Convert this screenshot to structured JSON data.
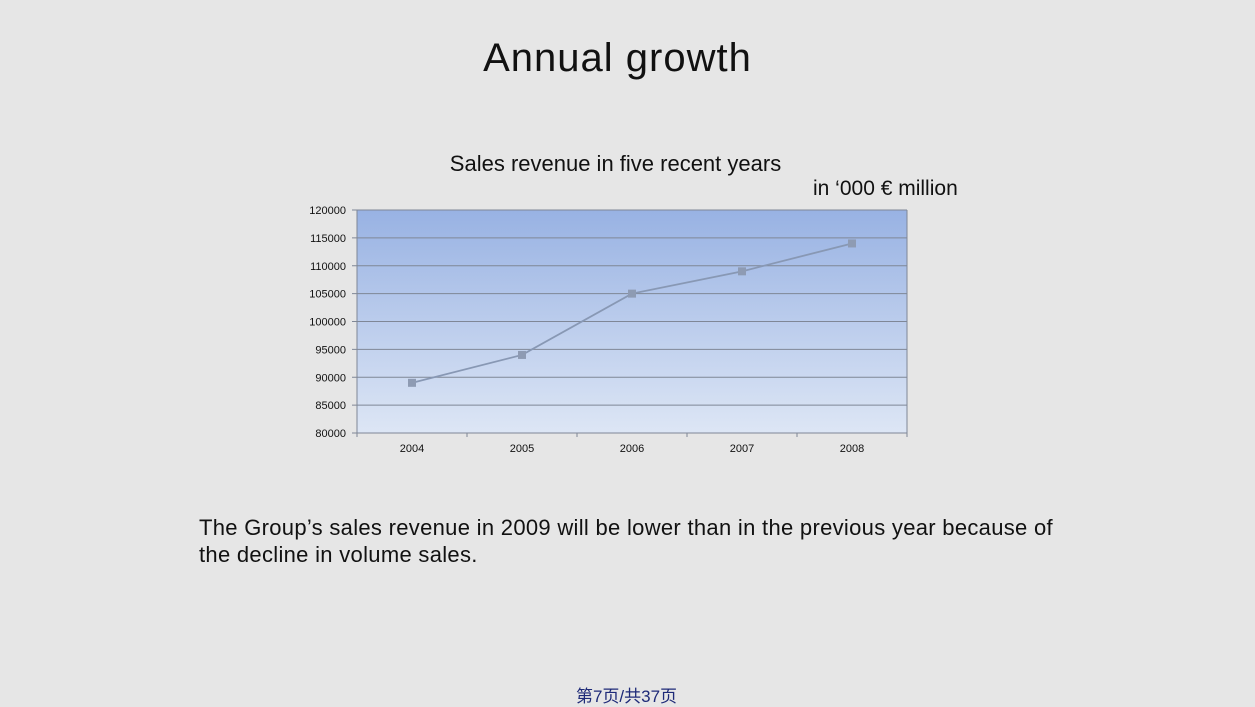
{
  "slide": {
    "title": "Annual growth",
    "text": "The Group’s sales revenue in 2009 will be lower than in the previous year because of the decline in volume sales.",
    "footer": "第7页/共37页"
  },
  "chart_data": {
    "type": "line",
    "title": "Sales revenue in five recent years",
    "unit_label": "in ‘000 € million",
    "categories": [
      "2004",
      "2005",
      "2006",
      "2007",
      "2008"
    ],
    "series": [
      {
        "values": [
          89000,
          94000,
          105000,
          109000,
          114000
        ]
      }
    ],
    "ylim": [
      80000,
      120000
    ],
    "yticks": [
      80000,
      85000,
      90000,
      95000,
      100000,
      105000,
      110000,
      115000,
      120000
    ],
    "grid": true,
    "colors": {
      "plot_top": "#98b2e3",
      "plot_bottom": "#dde6f5",
      "line": "#8898b4",
      "marker": "#8e9bb3",
      "grid": "#7f8796"
    }
  }
}
